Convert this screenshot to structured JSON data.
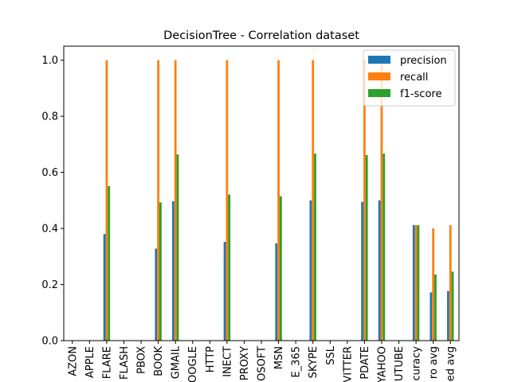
{
  "chart_data": {
    "type": "bar",
    "title": "DecisionTree - Correlation dataset",
    "xlabel": "",
    "ylabel": "",
    "ylim": [
      0,
      1.05
    ],
    "yticks": [
      0.0,
      0.2,
      0.4,
      0.6,
      0.8,
      1.0
    ],
    "ytick_labels": [
      "0.0",
      "0.2",
      "0.4",
      "0.6",
      "0.8",
      "1.0"
    ],
    "categories": [
      "AZON",
      "APPLE",
      "FLARE",
      "FLASH",
      "PBOX",
      "BOOK",
      "GMAIL",
      "OOGLE",
      "HTTP",
      "INECT",
      "PROXY",
      "OSOFT",
      "MSN",
      "E_365",
      "SKYPE",
      "SSL",
      "VITTER",
      "PDATE",
      "YAHOO",
      "UTUBE",
      "curacy",
      "ro avg",
      "ed avg"
    ],
    "legend_position": "top-right",
    "grid": false,
    "series": [
      {
        "name": "precision",
        "color": "#1f77b4",
        "values": [
          0,
          0,
          0.38,
          0,
          0,
          0.328,
          0.497,
          0,
          0,
          0.352,
          0,
          0,
          0.347,
          0,
          0.5,
          0,
          0,
          0.495,
          0.5,
          0,
          0.412,
          0.172,
          0.177
        ]
      },
      {
        "name": "recall",
        "color": "#ff7f0e",
        "values": [
          0,
          0,
          1.0,
          0,
          0,
          1.0,
          1.0,
          0,
          0,
          1.0,
          0,
          0,
          1.0,
          0,
          1.0,
          0,
          0,
          1.0,
          1.0,
          0,
          0.412,
          0.4,
          0.412
        ]
      },
      {
        "name": "f1-score",
        "color": "#2ca02c",
        "values": [
          0,
          0,
          0.551,
          0,
          0,
          0.493,
          0.664,
          0,
          0,
          0.521,
          0,
          0,
          0.515,
          0,
          0.667,
          0,
          0,
          0.662,
          0.667,
          0,
          0.412,
          0.236,
          0.246
        ]
      }
    ]
  }
}
